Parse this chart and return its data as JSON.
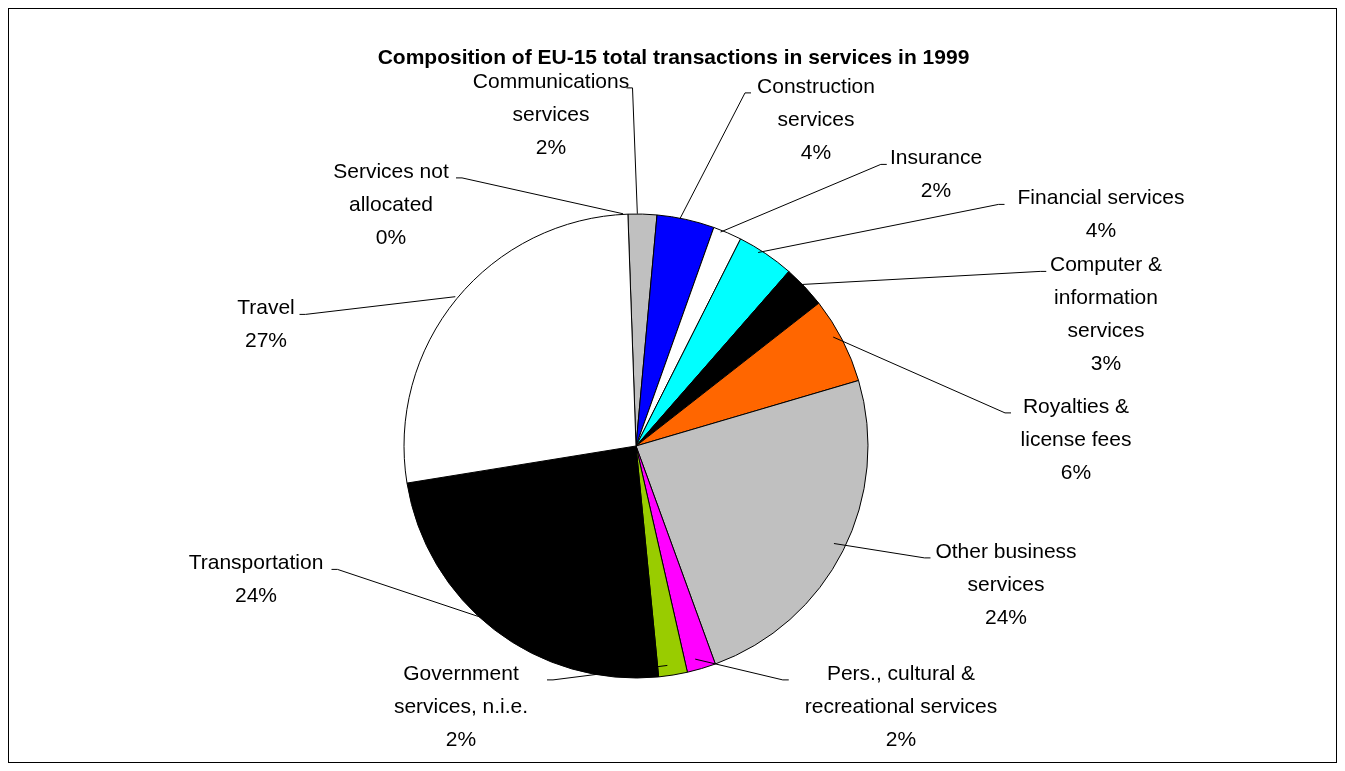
{
  "chart_data": {
    "type": "pie",
    "title": "Composition of  EU-15 total transactions in services in 1999",
    "categories": [
      "Communications services",
      "Construction services",
      "Insurance",
      "Financial services",
      "Computer & information services",
      "Royalties & license fees",
      "Other business services",
      "Pers., cultural & recreational services",
      "Government services, n.i.e.",
      "Transportation",
      "Travel",
      "Services not allocated"
    ],
    "values": [
      2,
      4,
      2,
      4,
      3,
      6,
      24,
      2,
      2,
      24,
      27,
      0
    ],
    "value_labels": [
      "2%",
      "4%",
      "2%",
      "4%",
      "3%",
      "6%",
      "24%",
      "2%",
      "2%",
      "24%",
      "27%",
      "0%"
    ],
    "colors": [
      "#c0c0c0",
      "#0000ff",
      "#ffffff",
      "#00ffff",
      "#000000",
      "#ff6600",
      "#c0c0c0",
      "#ff00ff",
      "#99cc00",
      "#000000",
      "#ffffff",
      "#ffffff"
    ],
    "legend": false
  }
}
